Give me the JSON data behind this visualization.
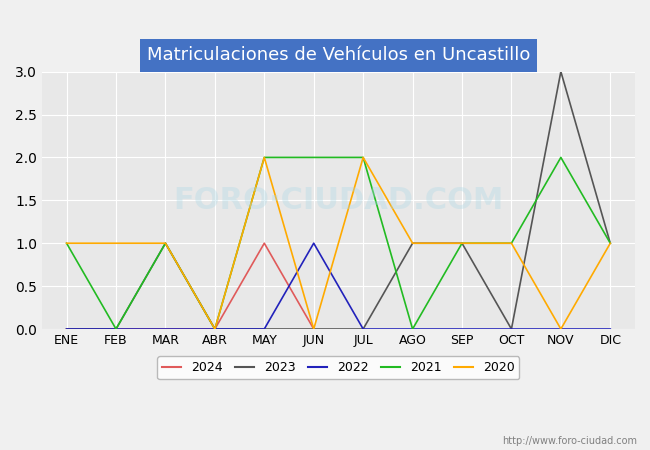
{
  "title": "Matriculaciones de Vehículos en Uncastillo",
  "months": [
    "ENE",
    "FEB",
    "MAR",
    "ABR",
    "MAY",
    "JUN",
    "JUL",
    "AGO",
    "SEP",
    "OCT",
    "NOV",
    "DIC"
  ],
  "series": {
    "2024": {
      "values": [
        0,
        0,
        0,
        0,
        1,
        0,
        null,
        null,
        null,
        null,
        null,
        null
      ],
      "color": "#e05a5a",
      "label": "2024"
    },
    "2023": {
      "values": [
        0,
        0,
        1,
        0,
        0,
        0,
        0,
        1,
        1,
        0,
        3,
        1
      ],
      "color": "#555555",
      "label": "2023"
    },
    "2022": {
      "values": [
        0,
        0,
        0,
        0,
        0,
        1,
        0,
        0,
        0,
        0,
        0,
        0
      ],
      "color": "#2222bb",
      "label": "2022"
    },
    "2021": {
      "values": [
        1,
        0,
        1,
        0,
        2,
        2,
        2,
        0,
        1,
        1,
        2,
        1
      ],
      "color": "#22bb22",
      "label": "2021"
    },
    "2020": {
      "values": [
        1,
        1,
        1,
        0,
        2,
        0,
        2,
        1,
        1,
        1,
        0,
        1
      ],
      "color": "#ffaa00",
      "label": "2020"
    }
  },
  "ylim": [
    0,
    3.0
  ],
  "yticks": [
    0.0,
    0.5,
    1.0,
    1.5,
    2.0,
    2.5,
    3.0
  ],
  "background_color": "#f0f0f0",
  "plot_bg_color": "#e8e8e8",
  "title_bg_color": "#4472c4",
  "title_font_color": "white",
  "watermark": "FORO·CIUDAD.COM",
  "url": "http://www.foro-ciudad.com",
  "legend_years": [
    "2024",
    "2023",
    "2022",
    "2021",
    "2020"
  ]
}
